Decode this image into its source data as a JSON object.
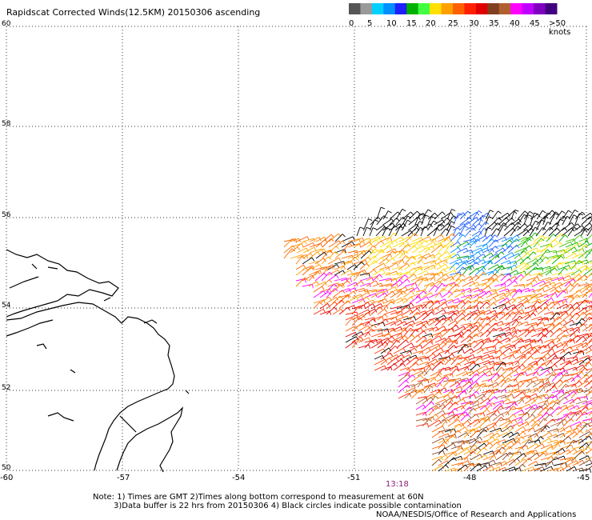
{
  "title": "Rapidscat Corrected Winds(12.5KM) 20150306 ascending",
  "colorbar": {
    "colors": [
      "#555555",
      "#9a9a9a",
      "#00d0ff",
      "#0090ff",
      "#2020ff",
      "#00b000",
      "#40ff40",
      "#ffe000",
      "#ffa000",
      "#ff6000",
      "#ff2000",
      "#e00000",
      "#804020",
      "#b06030",
      "#ff00ff",
      "#c000ff",
      "#8000c0",
      "#400080"
    ],
    "tick_labels": [
      "0",
      "5",
      "10",
      "15",
      "20",
      "25",
      "30",
      "35",
      "40",
      "45",
      ">50 knots"
    ]
  },
  "axes": {
    "lat_labels": [
      "60",
      "58",
      "56",
      "54",
      "52",
      "50"
    ],
    "lon_labels": [
      "-60",
      "-57",
      "-54",
      "-51",
      "-48",
      "-45"
    ]
  },
  "time_label": "13:18",
  "notes": [
    "Note: 1) Times are GMT 2)Times along bottom correspond to measurement at 60N",
    "3)Data buffer is 22 hrs from 20150306 4) Black circles indicate possible contamination",
    "NOAA/NESDIS/Office of Research and Applications"
  ]
}
